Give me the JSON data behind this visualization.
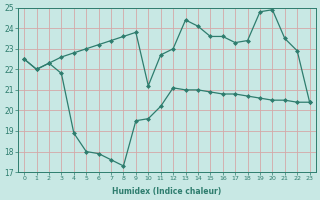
{
  "line1_x": [
    0,
    1,
    2,
    3,
    4,
    5,
    6,
    7,
    8,
    9,
    10,
    11,
    12,
    13,
    14,
    15,
    16,
    17,
    18,
    19,
    20,
    21,
    22,
    23
  ],
  "line1_y": [
    22.5,
    22.0,
    22.3,
    22.6,
    22.8,
    23.0,
    23.2,
    23.4,
    23.6,
    23.8,
    21.2,
    22.7,
    23.0,
    24.4,
    24.1,
    23.6,
    23.6,
    23.3,
    23.4,
    24.8,
    24.9,
    23.5,
    22.9,
    20.4
  ],
  "line2_x": [
    0,
    1,
    2,
    3,
    4,
    5,
    6,
    7,
    8,
    9,
    10,
    11,
    12,
    13,
    14,
    15,
    16,
    17,
    18,
    19,
    20,
    21,
    22,
    23
  ],
  "line2_y": [
    22.5,
    22.0,
    22.3,
    21.8,
    18.9,
    18.0,
    17.9,
    17.6,
    17.3,
    19.5,
    19.6,
    20.2,
    21.1,
    21.0,
    21.0,
    20.9,
    20.8,
    20.8,
    20.7,
    20.6,
    20.5,
    20.5,
    20.4,
    20.4
  ],
  "color": "#2e7d6e",
  "bg_color": "#c8e8e4",
  "grid_color": "#aed4ce",
  "ylim": [
    17,
    25
  ],
  "xlim": [
    -0.5,
    23.5
  ],
  "yticks": [
    17,
    18,
    19,
    20,
    21,
    22,
    23,
    24,
    25
  ],
  "xticks": [
    0,
    1,
    2,
    3,
    4,
    5,
    6,
    7,
    8,
    9,
    10,
    11,
    12,
    13,
    14,
    15,
    16,
    17,
    18,
    19,
    20,
    21,
    22,
    23
  ],
  "xlabel": "Humidex (Indice chaleur)"
}
